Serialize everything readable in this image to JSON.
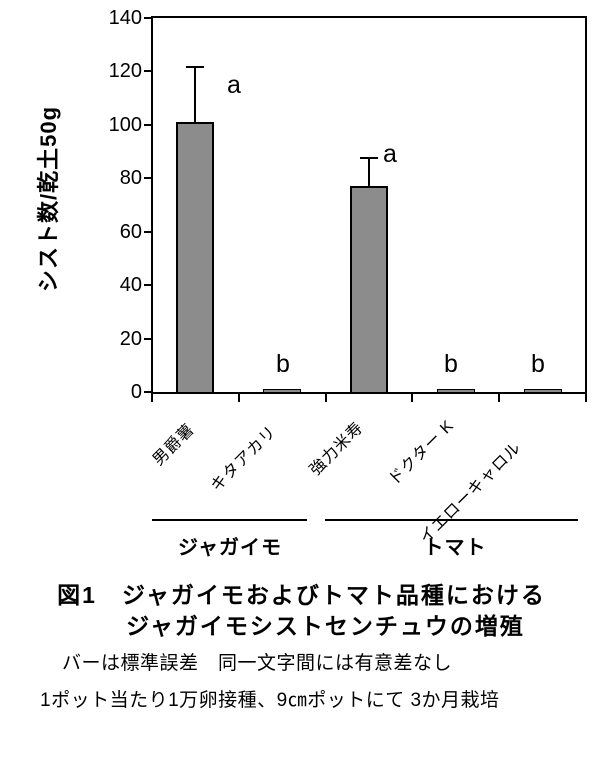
{
  "chart_data": {
    "type": "bar",
    "title_lines": [
      "図1　ジャガイモおよびトマト品種における",
      "ジャガイモシストセンチュウの増殖"
    ],
    "ylabel": "シスト数/乾土50g",
    "ylim": [
      0,
      140
    ],
    "yticks": [
      0,
      20,
      40,
      60,
      80,
      100,
      120,
      140
    ],
    "categories": [
      "男爵薯",
      "キタアカリ",
      "強力米寿",
      "ドクター K",
      "イエローキャロル"
    ],
    "values": [
      101,
      1,
      77,
      1,
      1
    ],
    "error_plus": [
      20.5,
      0,
      10.5,
      0,
      0
    ],
    "sig_letters": [
      "a",
      "b",
      "a",
      "b",
      "b"
    ],
    "groups": [
      {
        "label": "ジャガイモ",
        "categories": [
          0,
          1
        ]
      },
      {
        "label": "トマト",
        "categories": [
          2,
          4
        ]
      }
    ],
    "bar_color": "#8c8c8c",
    "axis_color": "#000000",
    "grid": false,
    "legend": false,
    "footnotes": [
      "バーは標準誤差　同一文字間には有意差なし",
      "1ポット当たり1万卵接種、9㎝ポットにて 3か月栽培"
    ]
  }
}
